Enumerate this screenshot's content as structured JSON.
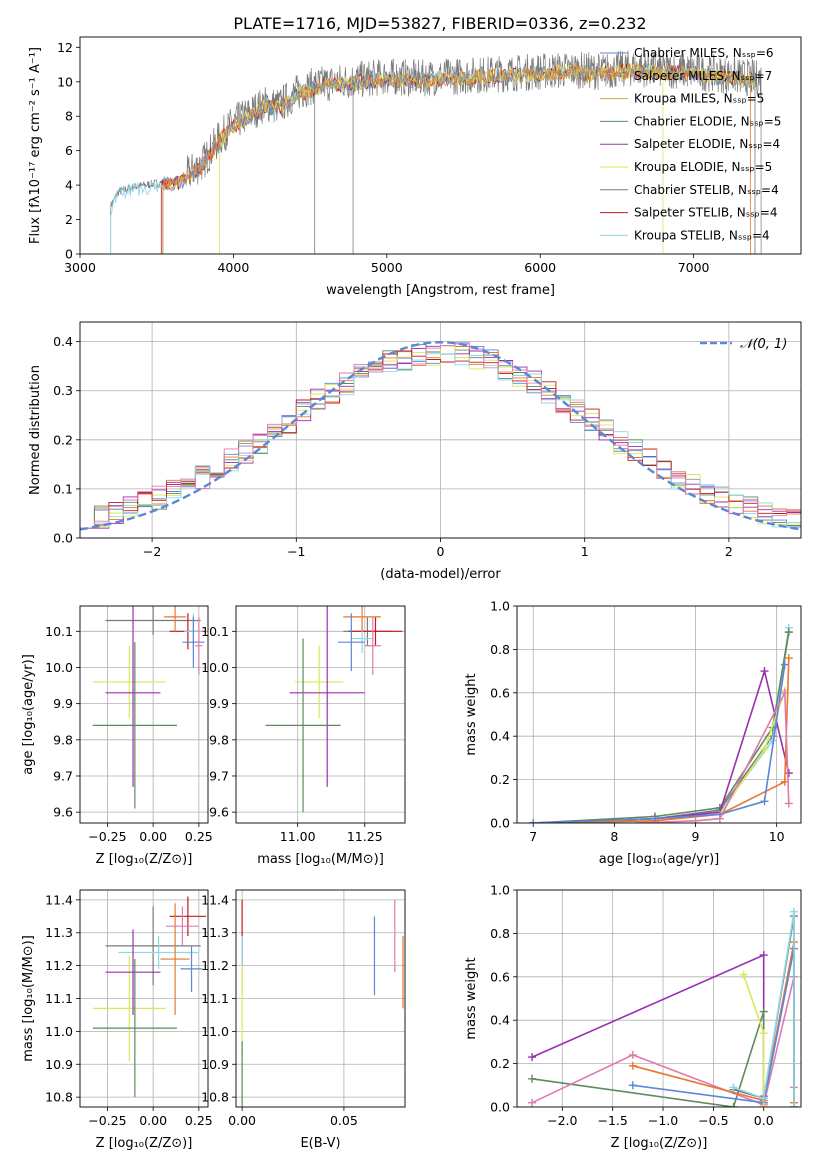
{
  "title": "PLATE=1716, MJD=53827, FIBERID=0336, z=0.232",
  "colors": {
    "Chabrier MILES": "#5b87d6",
    "Salpeter MILES": "#e8762b",
    "Kroupa MILES": "#d4a24a",
    "Chabrier ELODIE": "#5e8a5e",
    "Salpeter ELODIE": "#9a2fb0",
    "Kroupa ELODIE": "#d8e85a",
    "Chabrier STELIB": "#7a7a7a",
    "Salpeter STELIB": "#c11b1b",
    "Kroupa STELIB": "#8fd6e6",
    "pink": "#e07ab0",
    "normal": "#5b87d6"
  },
  "chart_data": [
    {
      "type": "line",
      "id": "spectrum",
      "xlabel": "wavelength [Angstrom, rest frame]",
      "ylabel": "Flux [fλ10⁻¹⁷ erg cm⁻² s⁻¹ A⁻¹]",
      "xlim": [
        3000,
        7700
      ],
      "ylim": [
        0,
        12.6
      ],
      "xticks": [
        3000,
        4000,
        5000,
        6000,
        7000
      ],
      "yticks": [
        0,
        2,
        4,
        6,
        8,
        10,
        12
      ],
      "grid": false,
      "legend_position": "right",
      "legend": [
        "Chabrier MILES, Nₛₛₚ=6",
        "Salpeter MILES, Nₛₛₚ=7",
        "Kroupa MILES, Nₛₛₚ=5",
        "Chabrier ELODIE, Nₛₛₚ=5",
        "Salpeter ELODIE, Nₛₛₚ=4",
        "Kroupa ELODIE, Nₛₛₚ=5",
        "Chabrier STELIB, Nₛₛₚ=4",
        "Salpeter STELIB, Nₛₛₚ=4",
        "Kroupa STELIB, Nₛₛₚ=4"
      ],
      "continuum": {
        "x": [
          3200,
          3250,
          3350,
          3500,
          3650,
          3800,
          3900,
          4000,
          4100,
          4200,
          4300,
          4400,
          4500,
          4600,
          4700,
          4800,
          4900,
          5000,
          5200,
          5400,
          5600,
          5800,
          6000,
          6200,
          6400,
          6600,
          6800,
          7000,
          7200,
          7400
        ],
        "y": [
          2.8,
          3.6,
          3.9,
          4.1,
          4.3,
          5.3,
          6.6,
          7.6,
          8.1,
          8.7,
          8.6,
          9.3,
          9.7,
          9.9,
          10.0,
          10.1,
          10.2,
          10.3,
          10.2,
          10.3,
          10.4,
          10.5,
          10.6,
          10.7,
          10.6,
          10.8,
          10.7,
          10.6,
          10.4,
          10.2
        ]
      }
    },
    {
      "type": "line",
      "id": "residuals",
      "xlabel": "(data-model)/error",
      "ylabel": "Normed distribution",
      "xlim": [
        -2.5,
        2.5
      ],
      "ylim": [
        0,
        0.44
      ],
      "xticks": [
        -2,
        -1,
        0,
        1,
        2
      ],
      "yticks": [
        0.0,
        0.1,
        0.2,
        0.3,
        0.4
      ],
      "grid": true,
      "legend": [
        "𝒩(0, 1)"
      ],
      "legend_position": "top-right",
      "normal_curve": {
        "mean": 0,
        "sigma": 1
      }
    },
    {
      "type": "scatter",
      "id": "age-vs-Z",
      "xlabel": "Z [log₁₀(Z/Z⊙)]",
      "ylabel": "age  [log₁₀(age/yr)]",
      "xlim": [
        -0.4,
        0.3
      ],
      "ylim": [
        9.57,
        10.17
      ],
      "xticks": [
        -0.25,
        0.0,
        0.25
      ],
      "yticks": [
        9.6,
        9.7,
        9.8,
        9.9,
        10.0,
        10.1
      ],
      "grid": true,
      "points": [
        {
          "x": 0.0,
          "y": 10.13,
          "xerr": 0.26,
          "yerr": 0.04,
          "c": "Chabrier STELIB"
        },
        {
          "x": 0.19,
          "y": 10.1,
          "xerr": 0.1,
          "yerr": 0.05,
          "c": "Salpeter STELIB"
        },
        {
          "x": 0.22,
          "y": 10.1,
          "xerr": 0.05,
          "yerr": 0.05,
          "c": "Kroupa STELIB"
        },
        {
          "x": 0.12,
          "y": 10.14,
          "xerr": 0.06,
          "yerr": 0.04,
          "c": "Salpeter MILES"
        },
        {
          "x": 0.22,
          "y": 10.07,
          "xerr": 0.06,
          "yerr": 0.07,
          "c": "Chabrier MILES"
        },
        {
          "x": 0.25,
          "y": 10.06,
          "xerr": 0.02,
          "yerr": 0.08,
          "c": "pink"
        },
        {
          "x": -0.13,
          "y": 9.96,
          "xerr": 0.2,
          "yerr": 0.1,
          "c": "Kroupa ELODIE"
        },
        {
          "x": -0.11,
          "y": 9.93,
          "xerr": 0.15,
          "yerr": 0.26,
          "c": "Salpeter ELODIE"
        },
        {
          "x": -0.1,
          "y": 9.84,
          "xerr": 0.23,
          "yerr": 0.23,
          "c": "Chabrier ELODIE"
        }
      ]
    },
    {
      "type": "scatter",
      "id": "age-vs-mass",
      "xlabel": "mass [log₁₀(M/M⊙)]",
      "ylabel": "",
      "xlim": [
        10.77,
        11.4
      ],
      "ylim": [
        9.57,
        10.17
      ],
      "xticks": [
        11.0,
        11.25
      ],
      "yticks": [
        9.6,
        9.7,
        9.8,
        9.9,
        10.0,
        10.1
      ],
      "grid": true,
      "points": [
        {
          "x": 11.26,
          "y": 10.1,
          "xerr": 0.09,
          "yerr": 0.04,
          "c": "Chabrier STELIB"
        },
        {
          "x": 11.29,
          "y": 10.1,
          "xerr": 0.1,
          "yerr": 0.04,
          "c": "Salpeter STELIB"
        },
        {
          "x": 11.24,
          "y": 10.08,
          "xerr": 0.04,
          "yerr": 0.04,
          "c": "Kroupa STELIB"
        },
        {
          "x": 11.24,
          "y": 10.14,
          "xerr": 0.07,
          "yerr": 0.04,
          "c": "Salpeter MILES"
        },
        {
          "x": 11.2,
          "y": 10.07,
          "xerr": 0.05,
          "yerr": 0.08,
          "c": "Chabrier MILES"
        },
        {
          "x": 11.28,
          "y": 10.06,
          "xerr": 0.03,
          "yerr": 0.08,
          "c": "pink"
        },
        {
          "x": 11.08,
          "y": 9.96,
          "xerr": 0.09,
          "yerr": 0.1,
          "c": "Kroupa ELODIE"
        },
        {
          "x": 11.11,
          "y": 9.93,
          "xerr": 0.14,
          "yerr": 0.26,
          "c": "Salpeter ELODIE"
        },
        {
          "x": 11.02,
          "y": 9.84,
          "xerr": 0.14,
          "yerr": 0.24,
          "c": "Chabrier ELODIE"
        }
      ]
    },
    {
      "type": "line",
      "id": "massweight-vs-age",
      "xlabel": "age  [log₁₀(age/yr)]",
      "ylabel": "mass weight",
      "xlim": [
        6.8,
        10.3
      ],
      "ylim": [
        0,
        1.0
      ],
      "xticks": [
        7,
        8,
        9,
        10
      ],
      "yticks": [
        0.0,
        0.2,
        0.4,
        0.6,
        0.8,
        1.0
      ],
      "grid": true,
      "series": [
        {
          "c": "Chabrier STELIB",
          "x": [
            7.0,
            8.5,
            9.3,
            9.95,
            10.15
          ],
          "y": [
            0.0,
            0.02,
            0.06,
            0.4,
            0.88
          ]
        },
        {
          "c": "Kroupa STELIB",
          "x": [
            7.0,
            8.5,
            9.3,
            9.95,
            10.15
          ],
          "y": [
            0.0,
            0.02,
            0.05,
            0.38,
            0.9
          ]
        },
        {
          "c": "Chabrier ELODIE",
          "x": [
            7.0,
            8.5,
            9.3,
            9.95,
            10.15
          ],
          "y": [
            0.0,
            0.03,
            0.07,
            0.44,
            0.88
          ]
        },
        {
          "c": "Salpeter ELODIE",
          "x": [
            7.0,
            8.5,
            9.3,
            9.85,
            10.15
          ],
          "y": [
            0.0,
            0.02,
            0.05,
            0.7,
            0.23
          ]
        },
        {
          "c": "Kroupa ELODIE",
          "x": [
            7.0,
            8.5,
            9.3,
            9.85,
            10.1
          ],
          "y": [
            0.0,
            0.01,
            0.04,
            0.34,
            0.61
          ]
        },
        {
          "c": "Salpeter MILES",
          "x": [
            7.0,
            8.5,
            9.3,
            10.1,
            10.15
          ],
          "y": [
            0.0,
            0.01,
            0.04,
            0.19,
            0.76
          ]
        },
        {
          "c": "Chabrier MILES",
          "x": [
            7.0,
            8.5,
            9.3,
            9.85,
            10.1
          ],
          "y": [
            0.0,
            0.02,
            0.04,
            0.1,
            0.73
          ]
        },
        {
          "c": "pink",
          "x": [
            8.3,
            9.0,
            9.3,
            10.1,
            10.15
          ],
          "y": [
            0.0,
            0.01,
            0.02,
            0.6,
            0.09
          ]
        }
      ]
    },
    {
      "type": "scatter",
      "id": "mass-vs-Z",
      "xlabel": "Z [log₁₀(Z/Z⊙)]",
      "ylabel": "mass [log₁₀(M/M⊙)]",
      "xlim": [
        -0.4,
        0.3
      ],
      "ylim": [
        10.77,
        11.43
      ],
      "xticks": [
        -0.25,
        0.0,
        0.25
      ],
      "yticks": [
        10.8,
        10.9,
        11.0,
        11.1,
        11.2,
        11.3,
        11.4
      ],
      "grid": true,
      "points": [
        {
          "x": 0.0,
          "y": 11.26,
          "xerr": 0.26,
          "yerr": 0.12,
          "c": "Chabrier STELIB"
        },
        {
          "x": 0.19,
          "y": 11.35,
          "xerr": 0.1,
          "yerr": 0.06,
          "c": "Salpeter STELIB"
        },
        {
          "x": 0.03,
          "y": 11.24,
          "xerr": 0.22,
          "yerr": 0.05,
          "c": "Kroupa STELIB"
        },
        {
          "x": 0.12,
          "y": 11.22,
          "xerr": 0.08,
          "yerr": 0.17,
          "c": "Salpeter MILES"
        },
        {
          "x": 0.21,
          "y": 11.19,
          "xerr": 0.06,
          "yerr": 0.07,
          "c": "Chabrier MILES"
        },
        {
          "x": 0.16,
          "y": 11.32,
          "xerr": 0.09,
          "yerr": 0.06,
          "c": "pink"
        },
        {
          "x": -0.13,
          "y": 11.07,
          "xerr": 0.2,
          "yerr": 0.16,
          "c": "Kroupa ELODIE"
        },
        {
          "x": -0.11,
          "y": 11.18,
          "xerr": 0.15,
          "yerr": 0.13,
          "c": "Salpeter ELODIE"
        },
        {
          "x": -0.1,
          "y": 11.01,
          "xerr": 0.23,
          "yerr": 0.21,
          "c": "Chabrier ELODIE"
        }
      ]
    },
    {
      "type": "scatter",
      "id": "mass-vs-ebv",
      "xlabel": "E(B-V)",
      "ylabel": "",
      "xlim": [
        -0.003,
        0.08
      ],
      "ylim": [
        10.77,
        11.43
      ],
      "xticks": [
        0.0,
        0.05
      ],
      "yticks": [
        10.8,
        10.9,
        11.0,
        11.1,
        11.2,
        11.3,
        11.4
      ],
      "grid": true,
      "points": [
        {
          "x": 0.0,
          "y": 11.3,
          "yerr": 0.1,
          "c": "Salpeter STELIB"
        },
        {
          "x": 0.0,
          "y": 11.2,
          "yerr": 0.09,
          "c": "Kroupa STELIB"
        },
        {
          "x": 0.0,
          "y": 11.06,
          "yerr": 0.14,
          "c": "Kroupa ELODIE"
        },
        {
          "x": 0.0,
          "y": 10.87,
          "yerr": 0.1,
          "c": "Chabrier ELODIE"
        },
        {
          "x": 0.065,
          "y": 11.23,
          "yerr": 0.12,
          "c": "Chabrier MILES"
        },
        {
          "x": 0.075,
          "y": 11.29,
          "yerr": 0.11,
          "c": "pink"
        },
        {
          "x": 0.079,
          "y": 11.18,
          "yerr": 0.11,
          "c": "Salpeter MILES"
        }
      ]
    },
    {
      "type": "line",
      "id": "massweight-vs-Z",
      "xlabel": "Z [log₁₀(Z/Z⊙)]",
      "ylabel": "mass weight",
      "xlim": [
        -2.45,
        0.37
      ],
      "ylim": [
        0,
        1.0
      ],
      "xticks": [
        -2.0,
        -1.5,
        -1.0,
        -0.5,
        0.0
      ],
      "yticks": [
        0.0,
        0.2,
        0.4,
        0.6,
        0.8,
        1.0
      ],
      "grid": true,
      "series": [
        {
          "c": "Salpeter ELODIE",
          "x": [
            -2.3,
            0.0,
            0.0,
            0.0
          ],
          "y": [
            0.23,
            0.7,
            0.05,
            0.02
          ]
        },
        {
          "c": "Chabrier ELODIE",
          "x": [
            -2.3,
            -0.3,
            0.0,
            0.0
          ],
          "y": [
            0.13,
            0.0,
            0.44,
            0.02
          ]
        },
        {
          "c": "pink",
          "x": [
            -2.3,
            -1.3,
            0.0,
            0.3,
            0.3
          ],
          "y": [
            0.02,
            0.24,
            0.01,
            0.6,
            0.09
          ]
        },
        {
          "c": "Salpeter MILES",
          "x": [
            -1.3,
            0.0,
            0.3,
            0.3
          ],
          "y": [
            0.19,
            0.03,
            0.76,
            0.02
          ]
        },
        {
          "c": "Chabrier MILES",
          "x": [
            -1.3,
            0.0,
            0.3,
            0.3
          ],
          "y": [
            0.1,
            0.02,
            0.73,
            0.0
          ]
        },
        {
          "c": "Kroupa ELODIE",
          "x": [
            -0.2,
            0.0,
            0.0
          ],
          "y": [
            0.61,
            0.34,
            0.0
          ]
        },
        {
          "c": "Chabrier STELIB",
          "x": [
            -0.3,
            0.0,
            0.3,
            0.3
          ],
          "y": [
            0.08,
            0.04,
            0.88,
            0.0
          ]
        },
        {
          "c": "Kroupa STELIB",
          "x": [
            -0.3,
            0.0,
            0.3,
            0.3
          ],
          "y": [
            0.09,
            0.04,
            0.9,
            0.0
          ]
        }
      ]
    }
  ]
}
